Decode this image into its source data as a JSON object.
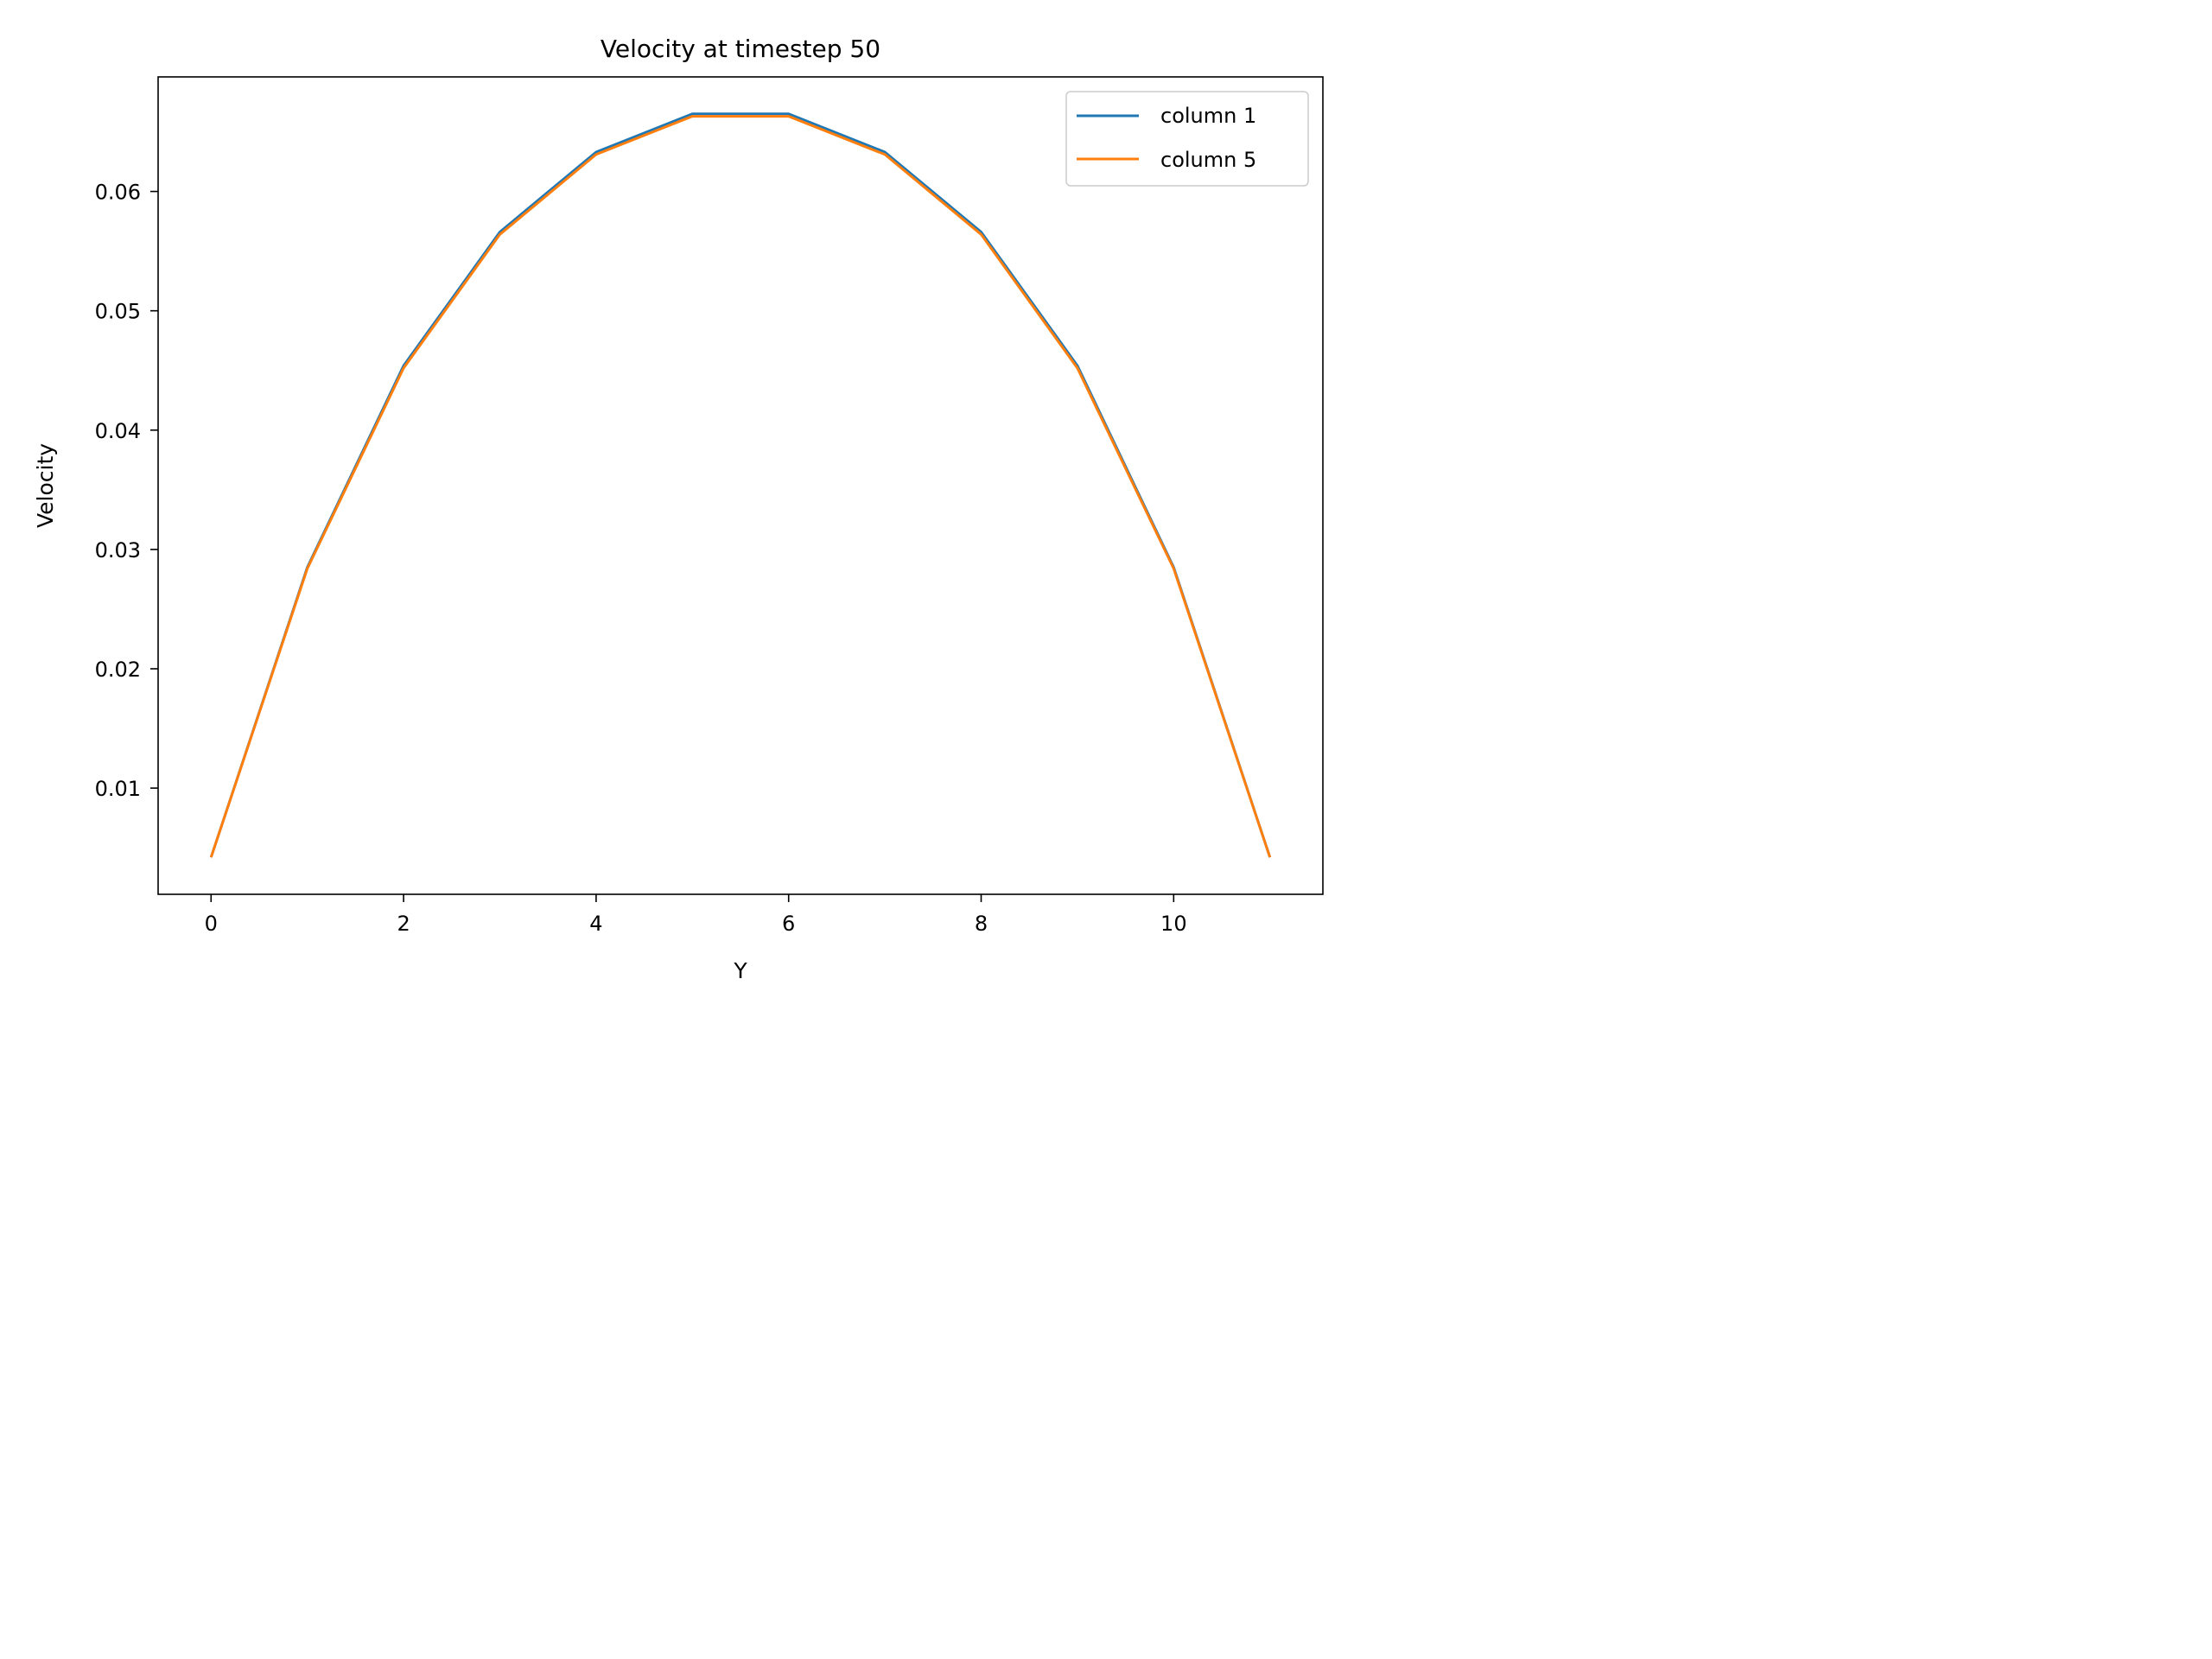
{
  "chart_data": {
    "type": "line",
    "title": "Velocity at timestep 50",
    "xlabel": "Y",
    "ylabel": "Velocity",
    "x": [
      0,
      1,
      2,
      3,
      4,
      5,
      6,
      7,
      8,
      9,
      10,
      11
    ],
    "xlim": [
      -0.55,
      11.55
    ],
    "ylim": [
      0.0011,
      0.0696
    ],
    "xticks": [
      0,
      2,
      4,
      6,
      8,
      10
    ],
    "xtick_labels": [
      "0",
      "2",
      "4",
      "6",
      "8",
      "10"
    ],
    "yticks": [
      0.01,
      0.02,
      0.03,
      0.04,
      0.05,
      0.06
    ],
    "ytick_labels": [
      "0.01",
      "0.02",
      "0.03",
      "0.04",
      "0.05",
      "0.06"
    ],
    "grid": false,
    "legend_position": "top-right",
    "series": [
      {
        "name": "column 1",
        "color": "#1f77b4",
        "values": [
          0.0042,
          0.0285,
          0.0454,
          0.0566,
          0.0633,
          0.0665,
          0.0665,
          0.0633,
          0.0566,
          0.0454,
          0.0285,
          0.0042
        ]
      },
      {
        "name": "column 5",
        "color": "#ff7f0e",
        "values": [
          0.0042,
          0.0284,
          0.0452,
          0.0564,
          0.0631,
          0.0663,
          0.0663,
          0.0631,
          0.0564,
          0.0452,
          0.0284,
          0.0042
        ]
      }
    ]
  }
}
